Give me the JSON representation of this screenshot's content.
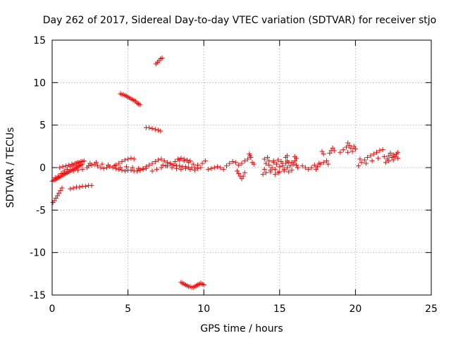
{
  "chart_data": {
    "type": "scatter",
    "title": "Day 262 of 2017, Sidereal Day-to-day VTEC variation (SDTVAR) for receiver stjo",
    "xlabel": "GPS time / hours",
    "ylabel": "SDTVAR / TECUs",
    "xlim": [
      0,
      25
    ],
    "ylim": [
      -15,
      15
    ],
    "xticks": [
      0,
      5,
      10,
      15,
      20,
      25
    ],
    "yticks": [
      -15,
      -10,
      -5,
      0,
      5,
      10,
      15
    ],
    "xtick_labels": [
      "0",
      "5",
      "10",
      "15",
      "20",
      "25"
    ],
    "ytick_labels": [
      "-15",
      "-10",
      "-5",
      "0",
      "5",
      "10",
      "15"
    ],
    "grid": true,
    "marker": "+",
    "color": "#ff0000",
    "series": [
      {
        "name": "stjo",
        "points": [
          [
            0.0,
            -1.6
          ],
          [
            0.1,
            -1.5
          ],
          [
            0.2,
            -1.4
          ],
          [
            0.3,
            -1.3
          ],
          [
            0.4,
            -1.2
          ],
          [
            0.5,
            -1.1
          ],
          [
            0.6,
            -1.0
          ],
          [
            0.7,
            -0.9
          ],
          [
            0.8,
            -0.8
          ],
          [
            0.9,
            -0.7
          ],
          [
            1.0,
            -0.6
          ],
          [
            1.1,
            -0.5
          ],
          [
            1.2,
            -0.4
          ],
          [
            1.3,
            -0.3
          ],
          [
            1.4,
            -0.2
          ],
          [
            1.5,
            -0.1
          ],
          [
            1.6,
            0.0
          ],
          [
            1.7,
            0.1
          ],
          [
            1.8,
            0.2
          ],
          [
            1.9,
            0.3
          ],
          [
            2.0,
            0.4
          ],
          [
            0.2,
            -1.2
          ],
          [
            0.4,
            -1.0
          ],
          [
            0.6,
            -0.7
          ],
          [
            0.8,
            -0.4
          ],
          [
            1.0,
            -0.2
          ],
          [
            1.2,
            0.1
          ],
          [
            1.4,
            0.3
          ],
          [
            1.6,
            0.5
          ],
          [
            1.8,
            0.6
          ],
          [
            2.0,
            0.7
          ],
          [
            0.5,
            0.0
          ],
          [
            0.7,
            0.1
          ],
          [
            0.9,
            0.2
          ],
          [
            1.1,
            0.3
          ],
          [
            1.3,
            0.4
          ],
          [
            1.5,
            0.5
          ],
          [
            1.7,
            0.6
          ],
          [
            1.9,
            0.7
          ],
          [
            2.1,
            0.8
          ],
          [
            0.8,
            -0.6
          ],
          [
            1.1,
            -0.5
          ],
          [
            1.4,
            -0.4
          ],
          [
            1.7,
            -0.3
          ],
          [
            2.0,
            -0.2
          ],
          [
            2.3,
            0.0
          ],
          [
            0.05,
            -4.1
          ],
          [
            0.15,
            -3.9
          ],
          [
            0.25,
            -3.6
          ],
          [
            0.35,
            -3.3
          ],
          [
            0.45,
            -3.0
          ],
          [
            0.55,
            -2.7
          ],
          [
            0.65,
            -2.4
          ],
          [
            1.2,
            -2.5
          ],
          [
            1.4,
            -2.4
          ],
          [
            1.6,
            -2.3
          ],
          [
            1.8,
            -2.3
          ],
          [
            2.0,
            -2.2
          ],
          [
            2.2,
            -2.2
          ],
          [
            2.4,
            -2.1
          ],
          [
            2.6,
            -2.1
          ],
          [
            2.4,
            0.2
          ],
          [
            2.6,
            0.3
          ],
          [
            2.8,
            0.4
          ],
          [
            3.0,
            0.2
          ],
          [
            3.2,
            0.0
          ],
          [
            3.4,
            -0.1
          ],
          [
            3.6,
            0.0
          ],
          [
            3.8,
            0.1
          ],
          [
            4.0,
            0.0
          ],
          [
            4.2,
            -0.1
          ],
          [
            4.4,
            -0.2
          ],
          [
            4.6,
            -0.3
          ],
          [
            4.8,
            -0.4
          ],
          [
            5.0,
            -0.3
          ],
          [
            5.2,
            -0.3
          ],
          [
            5.4,
            -0.4
          ],
          [
            5.6,
            -0.4
          ],
          [
            5.8,
            -0.3
          ],
          [
            6.0,
            -0.2
          ],
          [
            6.2,
            -0.1
          ],
          [
            2.5,
            0.5
          ],
          [
            2.9,
            0.6
          ],
          [
            3.3,
            0.4
          ],
          [
            3.7,
            0.3
          ],
          [
            4.1,
            0.2
          ],
          [
            4.5,
            0.0
          ],
          [
            4.9,
            0.1
          ],
          [
            5.3,
            0.0
          ],
          [
            5.7,
            -0.1
          ],
          [
            4.2,
            0.3
          ],
          [
            4.4,
            0.5
          ],
          [
            4.6,
            0.7
          ],
          [
            4.8,
            0.9
          ],
          [
            5.0,
            1.0
          ],
          [
            5.2,
            1.1
          ],
          [
            5.4,
            1.0
          ],
          [
            4.5,
            8.7
          ],
          [
            4.6,
            8.6
          ],
          [
            4.7,
            8.6
          ],
          [
            4.8,
            8.5
          ],
          [
            4.9,
            8.4
          ],
          [
            5.0,
            8.3
          ],
          [
            5.1,
            8.2
          ],
          [
            5.2,
            8.1
          ],
          [
            5.3,
            8.0
          ],
          [
            5.4,
            7.9
          ],
          [
            5.5,
            7.8
          ],
          [
            5.6,
            7.6
          ],
          [
            5.7,
            7.5
          ],
          [
            5.8,
            7.4
          ],
          [
            6.2,
            4.7
          ],
          [
            6.4,
            4.7
          ],
          [
            6.6,
            4.6
          ],
          [
            6.8,
            4.5
          ],
          [
            7.0,
            4.4
          ],
          [
            7.15,
            4.3
          ],
          [
            6.85,
            12.2
          ],
          [
            6.95,
            12.4
          ],
          [
            7.05,
            12.6
          ],
          [
            7.15,
            12.8
          ],
          [
            7.25,
            12.9
          ],
          [
            5.8,
            -0.3
          ],
          [
            6.0,
            -0.1
          ],
          [
            6.2,
            0.1
          ],
          [
            6.4,
            0.3
          ],
          [
            6.6,
            0.5
          ],
          [
            6.8,
            0.7
          ],
          [
            7.0,
            0.9
          ],
          [
            7.2,
            1.0
          ],
          [
            7.4,
            0.8
          ],
          [
            7.6,
            0.6
          ],
          [
            7.8,
            0.4
          ],
          [
            8.0,
            0.3
          ],
          [
            8.2,
            0.2
          ],
          [
            8.4,
            0.2
          ],
          [
            8.6,
            0.1
          ],
          [
            8.8,
            0.1
          ],
          [
            9.0,
            0.0
          ],
          [
            9.2,
            0.0
          ],
          [
            9.4,
            0.0
          ],
          [
            9.6,
            -0.1
          ],
          [
            9.8,
            0.0
          ],
          [
            6.6,
            -0.4
          ],
          [
            6.9,
            -0.2
          ],
          [
            7.2,
            0.0
          ],
          [
            7.5,
            0.2
          ],
          [
            7.8,
            0.5
          ],
          [
            8.1,
            0.7
          ],
          [
            8.4,
            0.9
          ],
          [
            8.7,
            0.8
          ],
          [
            9.0,
            0.6
          ],
          [
            9.3,
            0.4
          ],
          [
            9.6,
            0.3
          ],
          [
            9.9,
            0.5
          ],
          [
            10.1,
            0.8
          ],
          [
            7.3,
            0.3
          ],
          [
            7.6,
            0.2
          ],
          [
            7.9,
            0.0
          ],
          [
            8.2,
            -0.1
          ],
          [
            8.5,
            -0.2
          ],
          [
            8.8,
            -0.1
          ],
          [
            9.1,
            -0.2
          ],
          [
            9.4,
            -0.3
          ],
          [
            8.3,
            1.0
          ],
          [
            8.5,
            1.1
          ],
          [
            8.7,
            1.0
          ],
          [
            8.9,
            0.9
          ],
          [
            9.1,
            0.8
          ],
          [
            8.5,
            -13.5
          ],
          [
            8.6,
            -13.6
          ],
          [
            8.7,
            -13.7
          ],
          [
            8.8,
            -13.8
          ],
          [
            8.9,
            -13.9
          ],
          [
            9.0,
            -14.0
          ],
          [
            9.1,
            -14.0
          ],
          [
            9.2,
            -14.1
          ],
          [
            9.3,
            -14.1
          ],
          [
            9.4,
            -14.0
          ],
          [
            9.5,
            -13.9
          ],
          [
            9.6,
            -13.8
          ],
          [
            9.7,
            -13.7
          ],
          [
            9.8,
            -13.6
          ],
          [
            9.9,
            -13.7
          ],
          [
            10.0,
            -13.8
          ],
          [
            10.3,
            -0.2
          ],
          [
            10.5,
            -0.1
          ],
          [
            10.7,
            0.0
          ],
          [
            10.9,
            0.1
          ],
          [
            11.1,
            0.0
          ],
          [
            11.3,
            -0.2
          ],
          [
            11.5,
            0.2
          ],
          [
            11.7,
            0.5
          ],
          [
            11.9,
            0.7
          ],
          [
            12.1,
            0.6
          ],
          [
            12.3,
            0.3
          ],
          [
            12.5,
            0.5
          ],
          [
            12.7,
            0.8
          ],
          [
            12.9,
            1.0
          ],
          [
            13.1,
            1.2
          ],
          [
            12.2,
            -0.4
          ],
          [
            12.3,
            -0.7
          ],
          [
            12.4,
            -1.0
          ],
          [
            12.5,
            -1.3
          ],
          [
            12.6,
            -1.0
          ],
          [
            12.7,
            -0.6
          ],
          [
            13.0,
            1.6
          ],
          [
            13.05,
            1.4
          ],
          [
            13.1,
            1.2
          ],
          [
            13.2,
            0.6
          ],
          [
            13.3,
            0.4
          ],
          [
            13.9,
            -0.8
          ],
          [
            14.0,
            -0.2
          ],
          [
            14.1,
            0.5
          ],
          [
            14.2,
            1.2
          ],
          [
            14.3,
            0.3
          ],
          [
            14.4,
            -0.5
          ],
          [
            14.5,
            0.0
          ],
          [
            14.6,
            0.8
          ],
          [
            14.7,
            -0.2
          ],
          [
            14.8,
            0.4
          ],
          [
            14.9,
            -0.6
          ],
          [
            15.0,
            0.1
          ],
          [
            15.1,
            0.7
          ],
          [
            15.2,
            0.2
          ],
          [
            15.3,
            -0.4
          ],
          [
            15.4,
            0.5
          ],
          [
            15.5,
            0.0
          ],
          [
            15.6,
            0.6
          ],
          [
            15.7,
            0.2
          ],
          [
            15.8,
            -0.3
          ],
          [
            15.9,
            0.4
          ],
          [
            16.0,
            0.8
          ],
          [
            16.1,
            0.3
          ],
          [
            16.2,
            0.0
          ],
          [
            14.0,
            1.0
          ],
          [
            14.3,
            0.8
          ],
          [
            14.6,
            0.6
          ],
          [
            14.9,
            0.9
          ],
          [
            15.2,
            0.5
          ],
          [
            15.5,
            0.8
          ],
          [
            15.8,
            0.6
          ],
          [
            14.1,
            -0.6
          ],
          [
            14.4,
            -0.3
          ],
          [
            14.7,
            -0.8
          ],
          [
            15.0,
            -0.5
          ],
          [
            15.3,
            -0.2
          ],
          [
            15.6,
            -0.5
          ],
          [
            15.4,
            1.2
          ],
          [
            15.5,
            1.4
          ],
          [
            16.0,
            1.3
          ],
          [
            16.1,
            1.1
          ],
          [
            16.5,
            0.2
          ],
          [
            16.7,
            0.0
          ],
          [
            16.9,
            -0.2
          ],
          [
            17.1,
            0.0
          ],
          [
            17.3,
            0.3
          ],
          [
            17.5,
            0.1
          ],
          [
            17.7,
            0.4
          ],
          [
            17.9,
            0.6
          ],
          [
            18.1,
            0.8
          ],
          [
            18.2,
            0.4
          ],
          [
            17.4,
            -0.2
          ],
          [
            17.6,
            0.5
          ],
          [
            17.8,
            1.9
          ],
          [
            17.9,
            1.6
          ],
          [
            18.3,
            1.7
          ],
          [
            18.4,
            2.0
          ],
          [
            18.5,
            2.3
          ],
          [
            18.6,
            2.0
          ],
          [
            19.0,
            1.8
          ],
          [
            19.2,
            2.1
          ],
          [
            19.4,
            2.4
          ],
          [
            19.5,
            2.9
          ],
          [
            19.6,
            2.6
          ],
          [
            19.7,
            2.3
          ],
          [
            19.9,
            2.5
          ],
          [
            20.0,
            2.2
          ],
          [
            19.5,
            1.8
          ],
          [
            19.8,
            1.9
          ],
          [
            20.2,
            0.2
          ],
          [
            20.4,
            0.6
          ],
          [
            20.6,
            0.9
          ],
          [
            20.8,
            1.2
          ],
          [
            21.0,
            1.4
          ],
          [
            21.2,
            1.6
          ],
          [
            21.4,
            1.8
          ],
          [
            21.6,
            2.0
          ],
          [
            21.8,
            2.1
          ],
          [
            20.3,
            1.0
          ],
          [
            20.7,
            0.5
          ],
          [
            21.1,
            0.8
          ],
          [
            21.5,
            1.1
          ],
          [
            21.9,
            1.3
          ],
          [
            22.0,
            0.6
          ],
          [
            22.1,
            1.0
          ],
          [
            22.2,
            1.4
          ],
          [
            22.3,
            1.7
          ],
          [
            22.4,
            1.2
          ],
          [
            22.5,
            0.9
          ],
          [
            22.6,
            1.3
          ],
          [
            22.7,
            1.6
          ],
          [
            22.8,
            1.1
          ],
          [
            22.2,
            0.8
          ],
          [
            22.5,
            1.5
          ],
          [
            22.8,
            1.8
          ]
        ]
      }
    ]
  }
}
